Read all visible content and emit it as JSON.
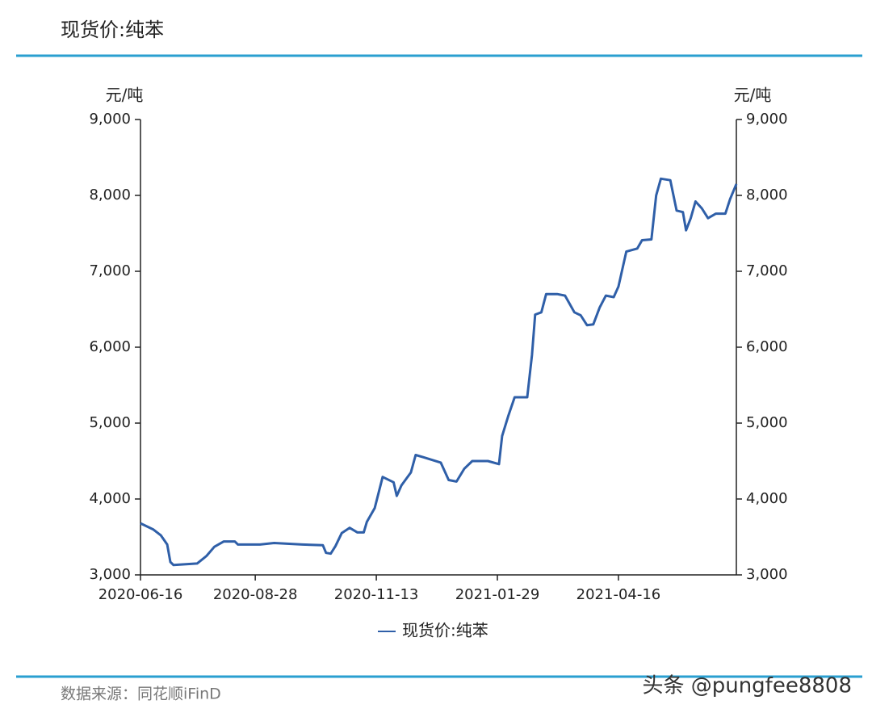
{
  "chart_data": {
    "type": "line",
    "title": "现货价:纯苯",
    "y_label": "元/吨",
    "y2_label": "元/吨",
    "source": "数据来源：同花顺iFinD",
    "watermark": "头条 @pungfee8808",
    "x": [
      "2020-06-16",
      "2020-06-24",
      "2020-06-29",
      "2020-07-03",
      "2020-07-05",
      "2020-07-07",
      "2020-07-22",
      "2020-07-28",
      "2020-08-02",
      "2020-08-08",
      "2020-08-15",
      "2020-08-17",
      "2020-08-31",
      "2020-09-09",
      "2020-09-27",
      "2020-10-10",
      "2020-10-12",
      "2020-10-15",
      "2020-10-18",
      "2020-10-22",
      "2020-10-27",
      "2020-11-01",
      "2020-11-05",
      "2020-11-07",
      "2020-11-12",
      "2020-11-17",
      "2020-11-24",
      "2020-11-26",
      "2020-11-29",
      "2020-12-05",
      "2020-12-08",
      "2020-12-13",
      "2020-12-24",
      "2020-12-29",
      "2021-01-03",
      "2021-01-08",
      "2021-01-13",
      "2021-01-23",
      "2021-01-30",
      "2021-02-01",
      "2021-02-05",
      "2021-02-09",
      "2021-02-17",
      "2021-02-20",
      "2021-02-22",
      "2021-02-26",
      "2021-03-01",
      "2021-03-08",
      "2021-03-13",
      "2021-03-19",
      "2021-03-23",
      "2021-03-27",
      "2021-03-31",
      "2021-04-04",
      "2021-04-08",
      "2021-04-13",
      "2021-04-16",
      "2021-04-21",
      "2021-04-28",
      "2021-05-01",
      "2021-05-07",
      "2021-05-10",
      "2021-05-13",
      "2021-05-19",
      "2021-05-23",
      "2021-05-27",
      "2021-05-29",
      "2021-06-01",
      "2021-06-04",
      "2021-06-08",
      "2021-06-12",
      "2021-06-17",
      "2021-06-23",
      "2021-06-26",
      "2021-06-30"
    ],
    "series": [
      {
        "name": "现货价:纯苯",
        "color": "#2f5fa8",
        "values": [
          3680,
          3600,
          3520,
          3400,
          3170,
          3130,
          3150,
          3250,
          3370,
          3440,
          3440,
          3400,
          3400,
          3420,
          3400,
          3390,
          3290,
          3280,
          3380,
          3550,
          3620,
          3560,
          3560,
          3700,
          3880,
          4290,
          4220,
          4040,
          4180,
          4350,
          4580,
          4550,
          4480,
          4250,
          4230,
          4400,
          4500,
          4500,
          4460,
          4830,
          5100,
          5340,
          5340,
          5900,
          6430,
          6460,
          6700,
          6700,
          6680,
          6460,
          6420,
          6290,
          6300,
          6520,
          6680,
          6660,
          6800,
          7260,
          7300,
          7410,
          7420,
          8000,
          8220,
          8200,
          7800,
          7780,
          7540,
          7700,
          7920,
          7830,
          7700,
          7760,
          7760,
          7950,
          8150
        ]
      }
    ],
    "xlim": [
      "2020-06-16",
      "2021-06-30"
    ],
    "xticks": [
      "2020-06-16",
      "2020-08-28",
      "2020-11-13",
      "2021-01-29",
      "2021-04-16"
    ],
    "ylim": [
      3000,
      9000
    ],
    "yticks": [
      {
        "value": 3000,
        "label": "3,000"
      },
      {
        "value": 4000,
        "label": "4,000"
      },
      {
        "value": 5000,
        "label": "5,000"
      },
      {
        "value": 6000,
        "label": "6,000"
      },
      {
        "value": 7000,
        "label": "7,000"
      },
      {
        "value": 8000,
        "label": "8,000"
      },
      {
        "value": 9000,
        "label": "9,000"
      }
    ],
    "y2lim": [
      3000,
      9000
    ],
    "y2ticks": [
      {
        "value": 3000,
        "label": "3,000"
      },
      {
        "value": 4000,
        "label": "4,000"
      },
      {
        "value": 5000,
        "label": "5,000"
      },
      {
        "value": 6000,
        "label": "6,000"
      },
      {
        "value": 7000,
        "label": "7,000"
      },
      {
        "value": 8000,
        "label": "8,000"
      },
      {
        "value": 9000,
        "label": "9,000"
      }
    ],
    "legend": "bottom"
  }
}
